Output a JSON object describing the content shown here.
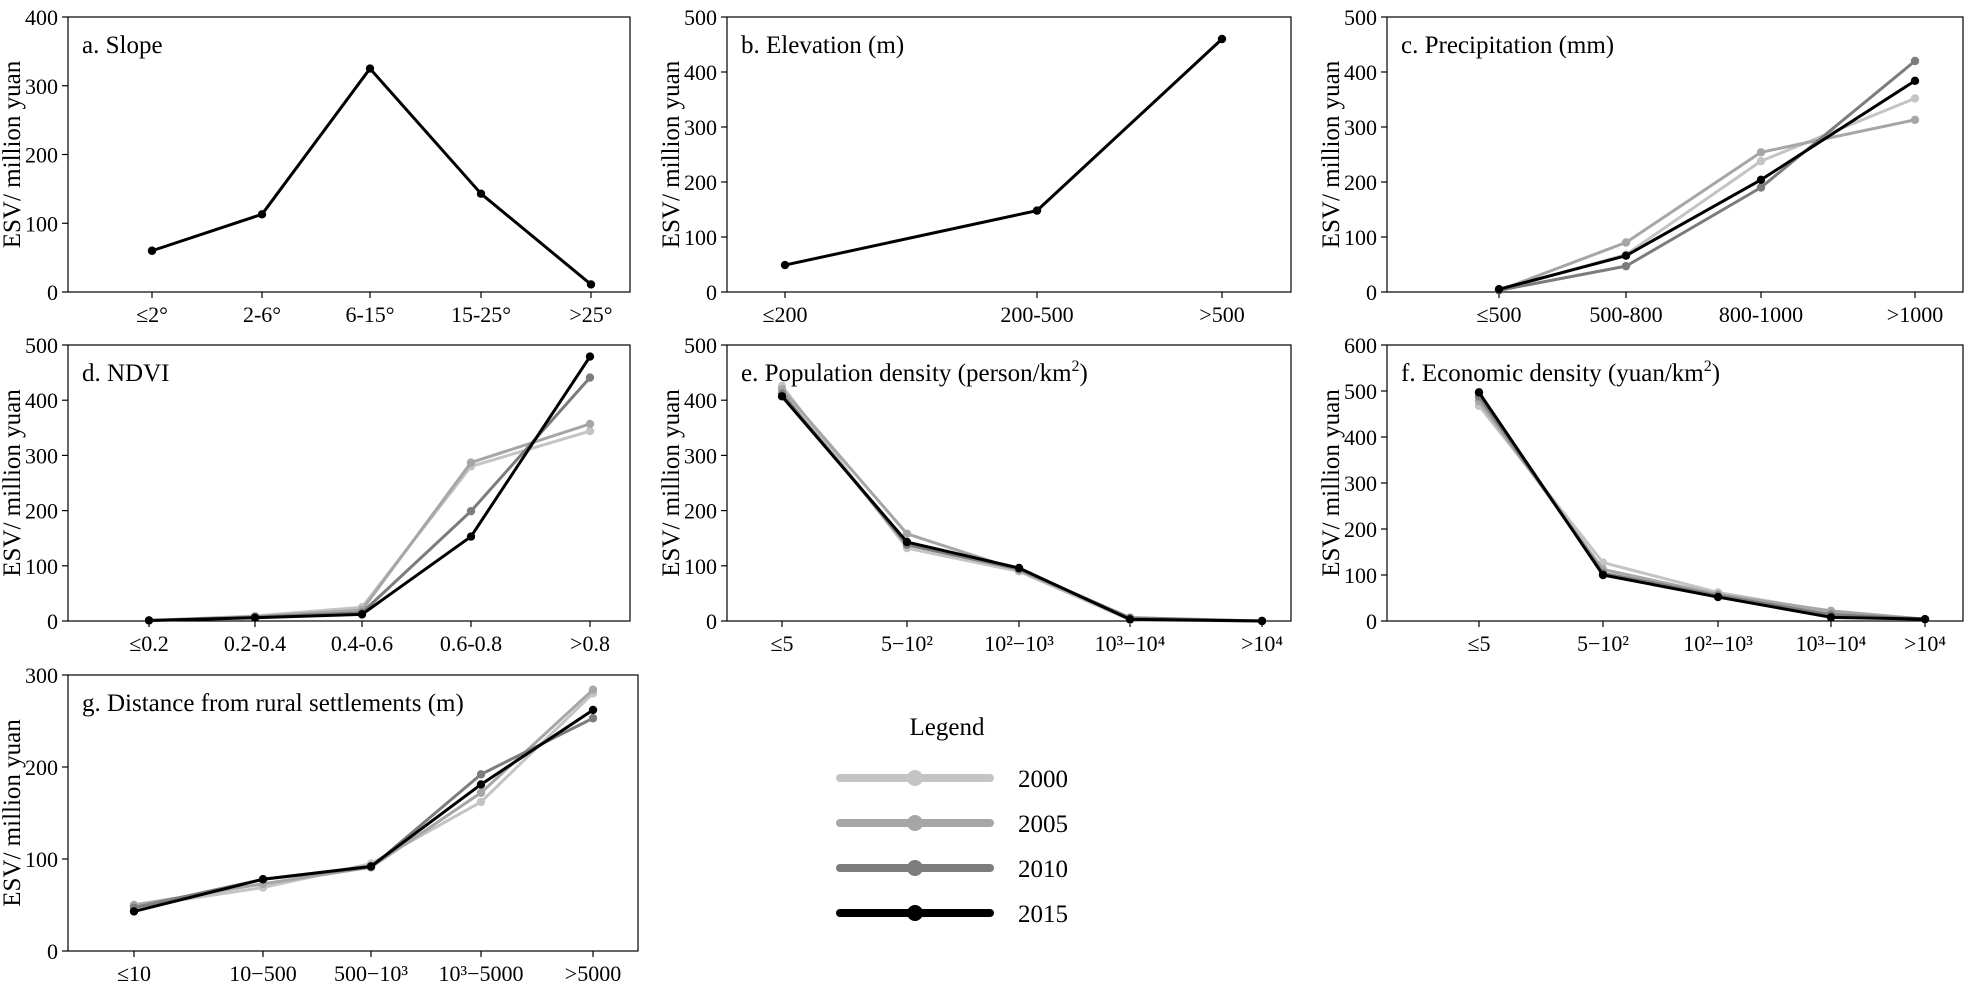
{
  "figure": {
    "y_axis_label": "ESV/ million yuan",
    "legend_title": "Legend",
    "years": [
      "2000",
      "2005",
      "2010",
      "2015"
    ],
    "series_colors": [
      "#c4c4c4",
      "#a6a6a6",
      "#7c7c7c",
      "#000000"
    ]
  },
  "chart_data": [
    {
      "id": "a",
      "type": "line",
      "title": "a. Slope",
      "categories": [
        "≤2°",
        "2-6°",
        "6-15°",
        "15-25°",
        ">25°"
      ],
      "ylim": [
        0,
        400
      ],
      "yticks": [
        0,
        100,
        200,
        300,
        400
      ],
      "ylabel": "ESV/ million yuan",
      "series": [
        {
          "name": "2015",
          "values": [
            60,
            113,
            325,
            143,
            11
          ]
        }
      ]
    },
    {
      "id": "b",
      "type": "line",
      "title": "b. Elevation (m)",
      "categories": [
        "≤200",
        "200-500",
        ">500"
      ],
      "ylim": [
        0,
        500
      ],
      "yticks": [
        0,
        100,
        200,
        300,
        400,
        500
      ],
      "ylabel": "ESV/ million yuan",
      "series": [
        {
          "name": "2015",
          "values": [
            49,
            148,
            460
          ]
        }
      ]
    },
    {
      "id": "c",
      "type": "line",
      "title": "c. Precipitation (mm)",
      "categories": [
        "≤500",
        "500-800",
        "800-1000",
        ">1000"
      ],
      "ylim": [
        0,
        500
      ],
      "yticks": [
        0,
        100,
        200,
        300,
        400,
        500
      ],
      "ylabel": "ESV/ million yuan",
      "series": [
        {
          "name": "2000",
          "values": [
            3,
            68,
            238,
            352
          ]
        },
        {
          "name": "2005",
          "values": [
            3,
            90,
            254,
            313
          ]
        },
        {
          "name": "2010",
          "values": [
            3,
            47,
            190,
            420
          ]
        },
        {
          "name": "2015",
          "values": [
            5,
            66,
            204,
            384
          ]
        }
      ]
    },
    {
      "id": "d",
      "type": "line",
      "title": "d. NDVI",
      "categories": [
        "≤0.2",
        "0.2-0.4",
        "0.4-0.6",
        "0.6-0.8",
        ">0.8"
      ],
      "ylim": [
        0,
        500
      ],
      "yticks": [
        0,
        100,
        200,
        300,
        400,
        500
      ],
      "ylabel": "ESV/ million yuan",
      "series": [
        {
          "name": "2000",
          "values": [
            1,
            9,
            25,
            280,
            344
          ]
        },
        {
          "name": "2005",
          "values": [
            1,
            8,
            20,
            287,
            357
          ]
        },
        {
          "name": "2010",
          "values": [
            1,
            7,
            15,
            199,
            441
          ]
        },
        {
          "name": "2015",
          "values": [
            1,
            6,
            12,
            153,
            479
          ]
        }
      ]
    },
    {
      "id": "e",
      "type": "line",
      "title_main": "e. Population density (person/km",
      "title_sup": "2",
      "title_end": ")",
      "categories": [
        "≤5",
        "5−10²",
        "10²−10³",
        "10³−10⁴",
        ">10⁴"
      ],
      "ylim": [
        0,
        500
      ],
      "yticks": [
        0,
        100,
        200,
        300,
        400,
        500
      ],
      "ylabel": "ESV/ million yuan",
      "series": [
        {
          "name": "2000",
          "values": [
            426,
            132,
            90,
            2,
            0
          ]
        },
        {
          "name": "2005",
          "values": [
            420,
            158,
            92,
            4,
            0
          ]
        },
        {
          "name": "2010",
          "values": [
            412,
            138,
            94,
            6,
            0
          ]
        },
        {
          "name": "2015",
          "values": [
            407,
            143,
            96,
            3,
            0
          ]
        }
      ]
    },
    {
      "id": "f",
      "type": "line",
      "title_main": "f. Economic density (yuan/km",
      "title_sup": "2",
      "title_end": ")",
      "categories": [
        "≤5",
        "5−10²",
        "10²−10³",
        "10³−10⁴",
        ">10⁴"
      ],
      "ylim": [
        0,
        600
      ],
      "yticks": [
        0,
        100,
        200,
        300,
        400,
        500,
        600
      ],
      "ylabel": "ESV/ million yuan",
      "series": [
        {
          "name": "2000",
          "values": [
            468,
            127,
            62,
            20,
            4
          ]
        },
        {
          "name": "2005",
          "values": [
            478,
            112,
            58,
            22,
            4
          ]
        },
        {
          "name": "2010",
          "values": [
            488,
            104,
            55,
            14,
            4
          ]
        },
        {
          "name": "2015",
          "values": [
            497,
            100,
            52,
            8,
            4
          ]
        }
      ]
    },
    {
      "id": "g",
      "type": "line",
      "title": "g. Distance from rural settlements (m)",
      "categories": [
        "≤10",
        "10−500",
        "500−10³",
        "10³−5000",
        ">5000"
      ],
      "ylim": [
        0,
        300
      ],
      "yticks": [
        0,
        100,
        200,
        300
      ],
      "ylabel": "ESV/ million yuan",
      "series": [
        {
          "name": "2000",
          "values": [
            48,
            69,
            95,
            162,
            280
          ]
        },
        {
          "name": "2005",
          "values": [
            50,
            73,
            91,
            172,
            284
          ]
        },
        {
          "name": "2010",
          "values": [
            47,
            78,
            91,
            192,
            253
          ]
        },
        {
          "name": "2015",
          "values": [
            43,
            78,
            92,
            181,
            262
          ]
        }
      ]
    }
  ]
}
